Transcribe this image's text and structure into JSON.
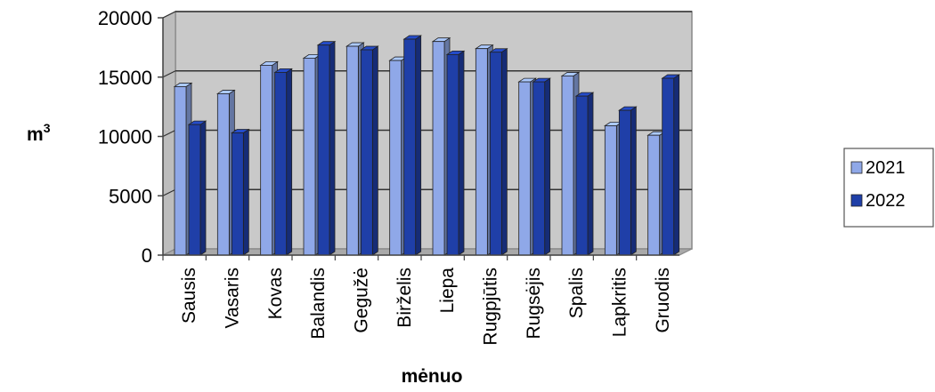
{
  "chart_data": {
    "type": "bar",
    "title": "",
    "xlabel": "mėnuo",
    "ylabel": "m",
    "ylabel_superscript": "3",
    "ylim": [
      0,
      20000
    ],
    "yticks": [
      0,
      5000,
      10000,
      15000,
      20000
    ],
    "categories": [
      "Sausis",
      "Vasaris",
      "Kovas",
      "Balandis",
      "Gegužė",
      "Birželis",
      "Liepa",
      "Rugpjūtis",
      "Rugsėjis",
      "Spalis",
      "Lapkritis",
      "Gruodis"
    ],
    "series": [
      {
        "name": "2021",
        "color": "#8fa8e8",
        "values": [
          14200,
          13600,
          16000,
          16600,
          17600,
          16400,
          18000,
          17400,
          14600,
          15100,
          10900,
          10100
        ]
      },
      {
        "name": "2022",
        "color": "#1f3fa8",
        "values": [
          11000,
          10300,
          15400,
          17700,
          17300,
          18200,
          16900,
          17100,
          14600,
          13400,
          12200,
          14900
        ]
      }
    ],
    "grid": true,
    "legend_position": "right"
  }
}
